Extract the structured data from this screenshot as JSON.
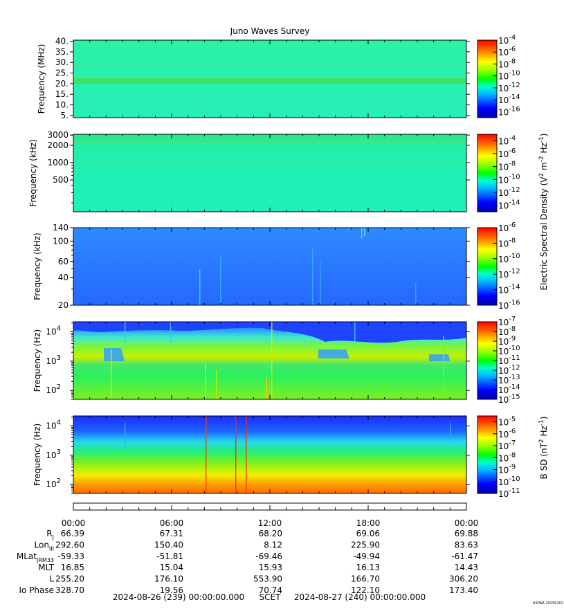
{
  "chart_data": {
    "type": "heatmap",
    "title": "Juno Waves Survey",
    "xlabel": "SCET",
    "x_start": "2024-08-26 (239) 00:00:00.000",
    "x_end": "2024-08-27 (240) 00:00:00.000",
    "x_ticks": [
      "00:00",
      "06:00",
      "12:00",
      "18:00",
      "00:00"
    ],
    "panels": [
      {
        "ylabel": "Frequency (MHz)",
        "yscale": "linear",
        "ylim": [
          4,
          40.5
        ],
        "yticks": [
          "40.",
          "35.",
          "30.",
          "25.",
          "20.",
          "15.",
          "10.",
          "5."
        ],
        "ytick_values": [
          40,
          35,
          30,
          25,
          20,
          15,
          10,
          5
        ],
        "cbar_exponents": [
          "-4",
          "-6",
          "-8",
          "-10",
          "-12",
          "-14",
          "-16"
        ],
        "cbar_range": [
          -17,
          -4
        ],
        "cbar_label": ""
      },
      {
        "ylabel": "Frequency (kHz)",
        "yscale": "log",
        "ylim": [
          140,
          3100
        ],
        "yticks": [
          "3000",
          "2000",
          "1000",
          "500"
        ],
        "ytick_values": [
          3000,
          2000,
          1000,
          500
        ],
        "cbar_exponents": [
          "-4",
          "-6",
          "-8",
          "-10",
          "-12",
          "-14"
        ],
        "cbar_range": [
          -15,
          -3
        ],
        "cbar_label": "Electric Spectral Density (V2 m-2 Hz-1)"
      },
      {
        "ylabel": "Frequency (kHz)",
        "yscale": "log",
        "ylim": [
          20,
          140
        ],
        "yticks": [
          "140",
          "100",
          "60",
          "40",
          "20"
        ],
        "ytick_values": [
          140,
          100,
          60,
          40,
          20
        ],
        "cbar_exponents": [
          "-6",
          "-8",
          "-10",
          "-12",
          "-14",
          "-16"
        ],
        "cbar_range": [
          -16,
          -6
        ],
        "cbar_label": ""
      },
      {
        "ylabel": "Frequency (Hz)",
        "yscale": "log",
        "ylim": [
          50,
          22000
        ],
        "yticks": [
          "10",
          "10",
          "10"
        ],
        "ytick_exponents": [
          "4",
          "3",
          "2"
        ],
        "ytick_values": [
          10000,
          1000,
          100
        ],
        "cbar_exponents": [
          "-7",
          "-8",
          "-9",
          "-10",
          "-11",
          "-12",
          "-13",
          "-14",
          "-15"
        ],
        "cbar_range": [
          -15,
          -7
        ],
        "cbar_label": ""
      },
      {
        "ylabel": "Frequency (Hz)",
        "yscale": "log",
        "ylim": [
          50,
          22000
        ],
        "yticks": [
          "10",
          "10",
          "10"
        ],
        "ytick_exponents": [
          "4",
          "3",
          "2"
        ],
        "ytick_values": [
          10000,
          1000,
          100
        ],
        "cbar_exponents": [
          "-5",
          "-6",
          "-7",
          "-8",
          "-9",
          "-10",
          "-11"
        ],
        "cbar_range": [
          -11,
          -4.5
        ],
        "cbar_label": "B SD (nT2 Hz-1)"
      }
    ],
    "ephemeris": {
      "rows": [
        {
          "label": "R",
          "sub": "J",
          "values": [
            "66.39",
            "67.31",
            "68.20",
            "69.06",
            "69.88"
          ]
        },
        {
          "label": "Lon",
          "sub": "III",
          "values": [
            "292.60",
            "150.40",
            "8.12",
            "225.90",
            "83.63"
          ]
        },
        {
          "label": "MLat",
          "sub": "JRM33",
          "values": [
            "-59.33",
            "-51.81",
            "-69.46",
            "-49.94",
            "-61.47"
          ]
        },
        {
          "label": "MLT",
          "sub": "",
          "values": [
            "16.85",
            "15.04",
            "15.93",
            "16.13",
            "14.43"
          ]
        },
        {
          "label": "L",
          "sub": "",
          "values": [
            "255.20",
            "176.10",
            "553.90",
            "166.70",
            "306.20"
          ]
        },
        {
          "label": "Io Phase",
          "sub": "",
          "values": [
            "328.70",
            "19.56",
            "70.74",
            "122.10",
            "173.40"
          ]
        }
      ]
    },
    "credit": "UIOWA 20250202"
  }
}
